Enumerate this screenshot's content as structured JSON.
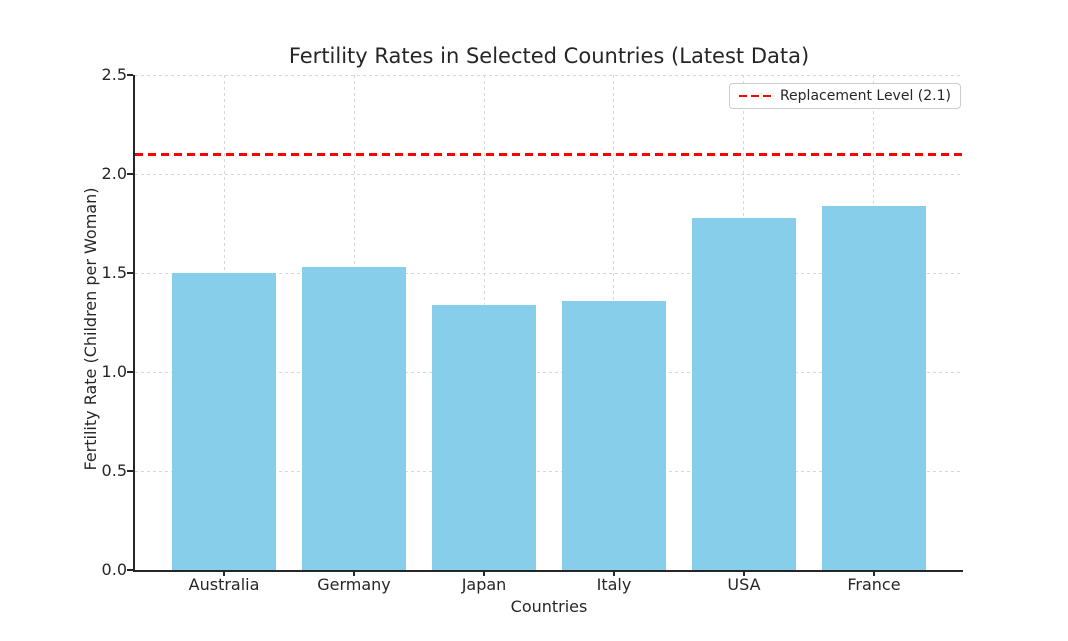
{
  "chart_data": {
    "type": "bar",
    "title": "Fertility Rates in Selected Countries (Latest Data)",
    "xlabel": "Countries",
    "ylabel": "Fertility Rate (Children per Woman)",
    "categories": [
      "Australia",
      "Germany",
      "Japan",
      "Italy",
      "USA",
      "France"
    ],
    "values": [
      1.5,
      1.53,
      1.34,
      1.36,
      1.78,
      1.84
    ],
    "ylim": [
      0,
      2.5
    ],
    "yticks": [
      0.0,
      0.5,
      1.0,
      1.5,
      2.0,
      2.5
    ],
    "grid": "dashed, both horizontal and vertical gridlines, light gray",
    "bar_color": "#87CEEB",
    "threshold_line": {
      "value": 2.1,
      "label": "Replacement Level (2.1)",
      "color": "#FF0000",
      "style": "dashed"
    },
    "legend": {
      "position": "upper-right",
      "entries": [
        {
          "label": "Replacement Level (2.1)",
          "color": "#FF0000",
          "style": "dashed-line"
        }
      ]
    },
    "layout": {
      "x_margin_units": 0.185,
      "bar_width_ratio": 0.8
    }
  },
  "colors": {
    "bar": "#87CEEB",
    "threshold": "#FF0000",
    "grid": "#D8D8D8",
    "text": "#262626",
    "spine": "#262626",
    "legend_border": "#CCCCCC",
    "background": "#FFFFFF"
  }
}
